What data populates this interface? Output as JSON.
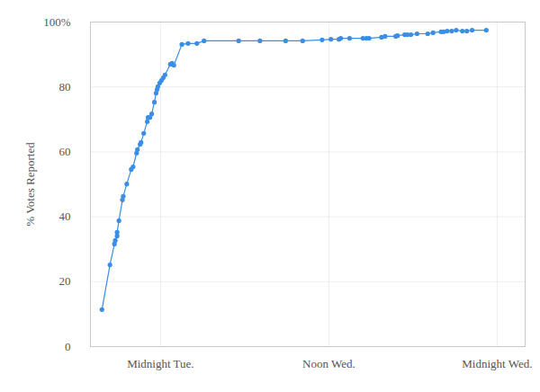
{
  "chart_data": {
    "type": "line",
    "ylabel": "% Votes Reported",
    "color": "#3a8ee6",
    "marker": "circle",
    "grid": true,
    "xlim": [
      -5,
      26
    ],
    "xticks": [
      {
        "value": 0,
        "label": "Midnight Tue."
      },
      {
        "value": 12,
        "label": "Noon Wed."
      },
      {
        "value": 24,
        "label": "Midnight Wed."
      }
    ],
    "ylim": [
      0,
      100
    ],
    "yticks": [
      0,
      20,
      40,
      60,
      80,
      {
        "value": 100,
        "label": "100%"
      }
    ],
    "x": [
      -4.18,
      -3.61,
      -3.29,
      -3.23,
      -3.1,
      -3.1,
      -2.97,
      -2.72,
      -2.66,
      -2.41,
      -2.09,
      -1.96,
      -1.71,
      -1.65,
      -1.46,
      -1.39,
      -1.2,
      -0.95,
      -0.89,
      -0.76,
      -0.63,
      -0.44,
      -0.32,
      -0.25,
      -0.19,
      -0.06,
      0.06,
      0.19,
      0.32,
      0.7,
      0.82,
      0.95,
      1.52,
      1.96,
      2.59,
      3.1,
      5.57,
      7.09,
      8.92,
      10.13,
      11.52,
      12.15,
      12.72,
      12.85,
      13.48,
      14.43,
      14.68,
      14.87,
      15.76,
      16.01,
      16.77,
      16.9,
      17.41,
      17.59,
      17.85,
      18.29,
      19.05,
      19.43,
      20.0,
      20.19,
      20.44,
      20.76,
      21.08,
      21.52,
      21.84,
      22.22,
      23.23
    ],
    "values": [
      11.4,
      25.2,
      31.6,
      32.7,
      34.1,
      35.2,
      38.8,
      45.2,
      46.3,
      50.1,
      54.6,
      55.4,
      59.6,
      60.7,
      62.3,
      62.9,
      65.7,
      69.3,
      70.6,
      70.6,
      71.7,
      75.3,
      78.1,
      79.2,
      80.1,
      81.2,
      82.0,
      82.8,
      83.7,
      87.0,
      87.3,
      86.7,
      93.1,
      93.4,
      93.4,
      94.2,
      94.2,
      94.2,
      94.2,
      94.2,
      94.5,
      94.7,
      94.7,
      95.0,
      95.0,
      95.0,
      95.0,
      95.0,
      95.3,
      95.6,
      95.6,
      95.8,
      96.1,
      96.1,
      96.1,
      96.4,
      96.4,
      96.7,
      97.0,
      97.0,
      97.2,
      97.2,
      97.5,
      97.2,
      97.2,
      97.5,
      97.5
    ]
  }
}
